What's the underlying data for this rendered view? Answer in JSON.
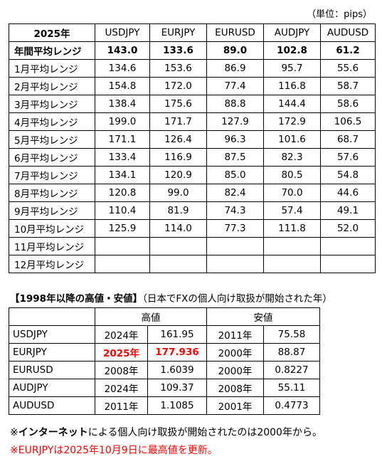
{
  "unit": "（単位：pips）",
  "table1": {
    "headers": [
      "2025年",
      "USDJPY",
      "EURJPY",
      "EURUSD",
      "AUDJPY",
      "AUDUSD"
    ],
    "annual": [
      "年間平均レンジ",
      "143.0",
      "133.6",
      "89.0",
      "102.8",
      "61.2"
    ],
    "rows": [
      [
        "1月平均レンジ",
        "134.6",
        "153.6",
        "86.9",
        "95.7",
        "55.6"
      ],
      [
        "2月平均レンジ",
        "154.8",
        "172.0",
        "77.4",
        "116.8",
        "58.7"
      ],
      [
        "3月平均レンジ",
        "138.4",
        "175.6",
        "88.8",
        "144.4",
        "58.6"
      ],
      [
        "4月平均レンジ",
        "199.0",
        "171.7",
        "127.9",
        "172.9",
        "106.5"
      ],
      [
        "5月平均レンジ",
        "171.1",
        "126.4",
        "96.3",
        "101.6",
        "68.7"
      ],
      [
        "6月平均レンジ",
        "133.4",
        "116.9",
        "87.5",
        "82.3",
        "57.6"
      ],
      [
        "7月平均レンジ",
        "134.1",
        "120.9",
        "85.0",
        "80.5",
        "54.8"
      ],
      [
        "8月平均レンジ",
        "120.8",
        "99.0",
        "82.4",
        "70.0",
        "44.6"
      ],
      [
        "9月平均レンジ",
        "110.4",
        "81.9",
        "74.3",
        "57.4",
        "49.1"
      ],
      [
        "10月平均レンジ",
        "125.9",
        "114.0",
        "77.3",
        "111.8",
        "52.0"
      ],
      [
        "11月平均レンジ"
      ],
      [
        "12月平均レンジ"
      ]
    ]
  },
  "table2": {
    "title": "【1998年以降の高値・安値】",
    "subtitle": "（日本でFXの個人向け取扱が開始された年）",
    "headers": [
      "高値",
      "安値"
    ],
    "rows": [
      {
        "name": "USDJPY",
        "high_year": "2024年",
        "high": "161.95",
        "low_year": "2011年",
        "low": "75.58"
      },
      {
        "name": "EURJPY",
        "high_year": "2025年",
        "high": "177.936",
        "low_year": "2000年",
        "low": "88.87",
        "high_color": "#ff0000"
      },
      {
        "name": "EURUSD",
        "high_year": "2008年",
        "high": "1.6039",
        "low_year": "2000年",
        "low": "0.8227"
      },
      {
        "name": "AUDJPY",
        "high_year": "2024年",
        "high": "109.37",
        "low_year": "2008年",
        "low": "55.11"
      },
      {
        "name": "AUDUSD",
        "high_year": "2011年",
        "high": "1.1085",
        "low_year": "2001年",
        "low": "0.4773"
      }
    ]
  },
  "notes": {
    "note1": {
      "prefix": "※",
      "bold": "インターネット",
      "rest": "による個人向け取扱が開始されたのは2000年から。"
    },
    "note2": {
      "text": "※EURJPYは2025年10月9日に最高値を更新。",
      "color": "#ff0000"
    }
  }
}
